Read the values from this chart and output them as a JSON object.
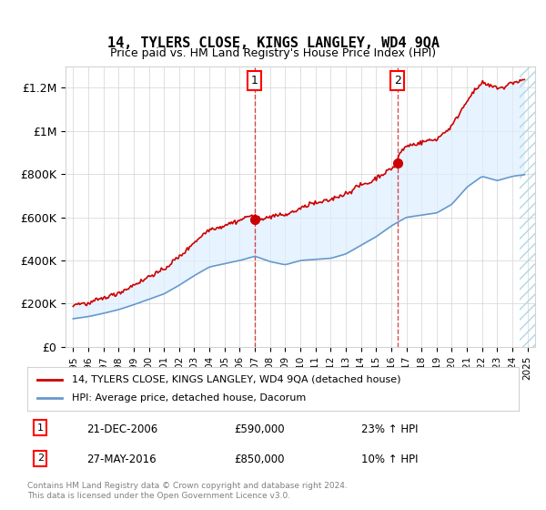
{
  "title": "14, TYLERS CLOSE, KINGS LANGLEY, WD4 9QA",
  "subtitle": "Price paid vs. HM Land Registry's House Price Index (HPI)",
  "ylabel": "",
  "ylim": [
    0,
    1300000
  ],
  "yticks": [
    0,
    200000,
    400000,
    600000,
    800000,
    1000000,
    1200000
  ],
  "ytick_labels": [
    "£0",
    "£200K",
    "£400K",
    "£600K",
    "£800K",
    "£1M",
    "£1.2M"
  ],
  "house_color": "#cc0000",
  "hpi_color": "#6699cc",
  "hpi_fill_color": "#ddeeff",
  "purchase_1_x": 2006.97,
  "purchase_1_y": 590000,
  "purchase_2_x": 2016.41,
  "purchase_2_y": 850000,
  "legend_house_label": "14, TYLERS CLOSE, KINGS LANGLEY, WD4 9QA (detached house)",
  "legend_hpi_label": "HPI: Average price, detached house, Dacorum",
  "annotation_1_date": "21-DEC-2006",
  "annotation_1_price": "£590,000",
  "annotation_1_hpi": "23% ↑ HPI",
  "annotation_2_date": "27-MAY-2016",
  "annotation_2_price": "£850,000",
  "annotation_2_hpi": "10% ↑ HPI",
  "footer": "Contains HM Land Registry data © Crown copyright and database right 2024.\nThis data is licensed under the Open Government Licence v3.0.",
  "background_color": "#ffffff",
  "hatch_region_start": 2024.5,
  "xlim_start": 1994.5,
  "xlim_end": 2025.5
}
